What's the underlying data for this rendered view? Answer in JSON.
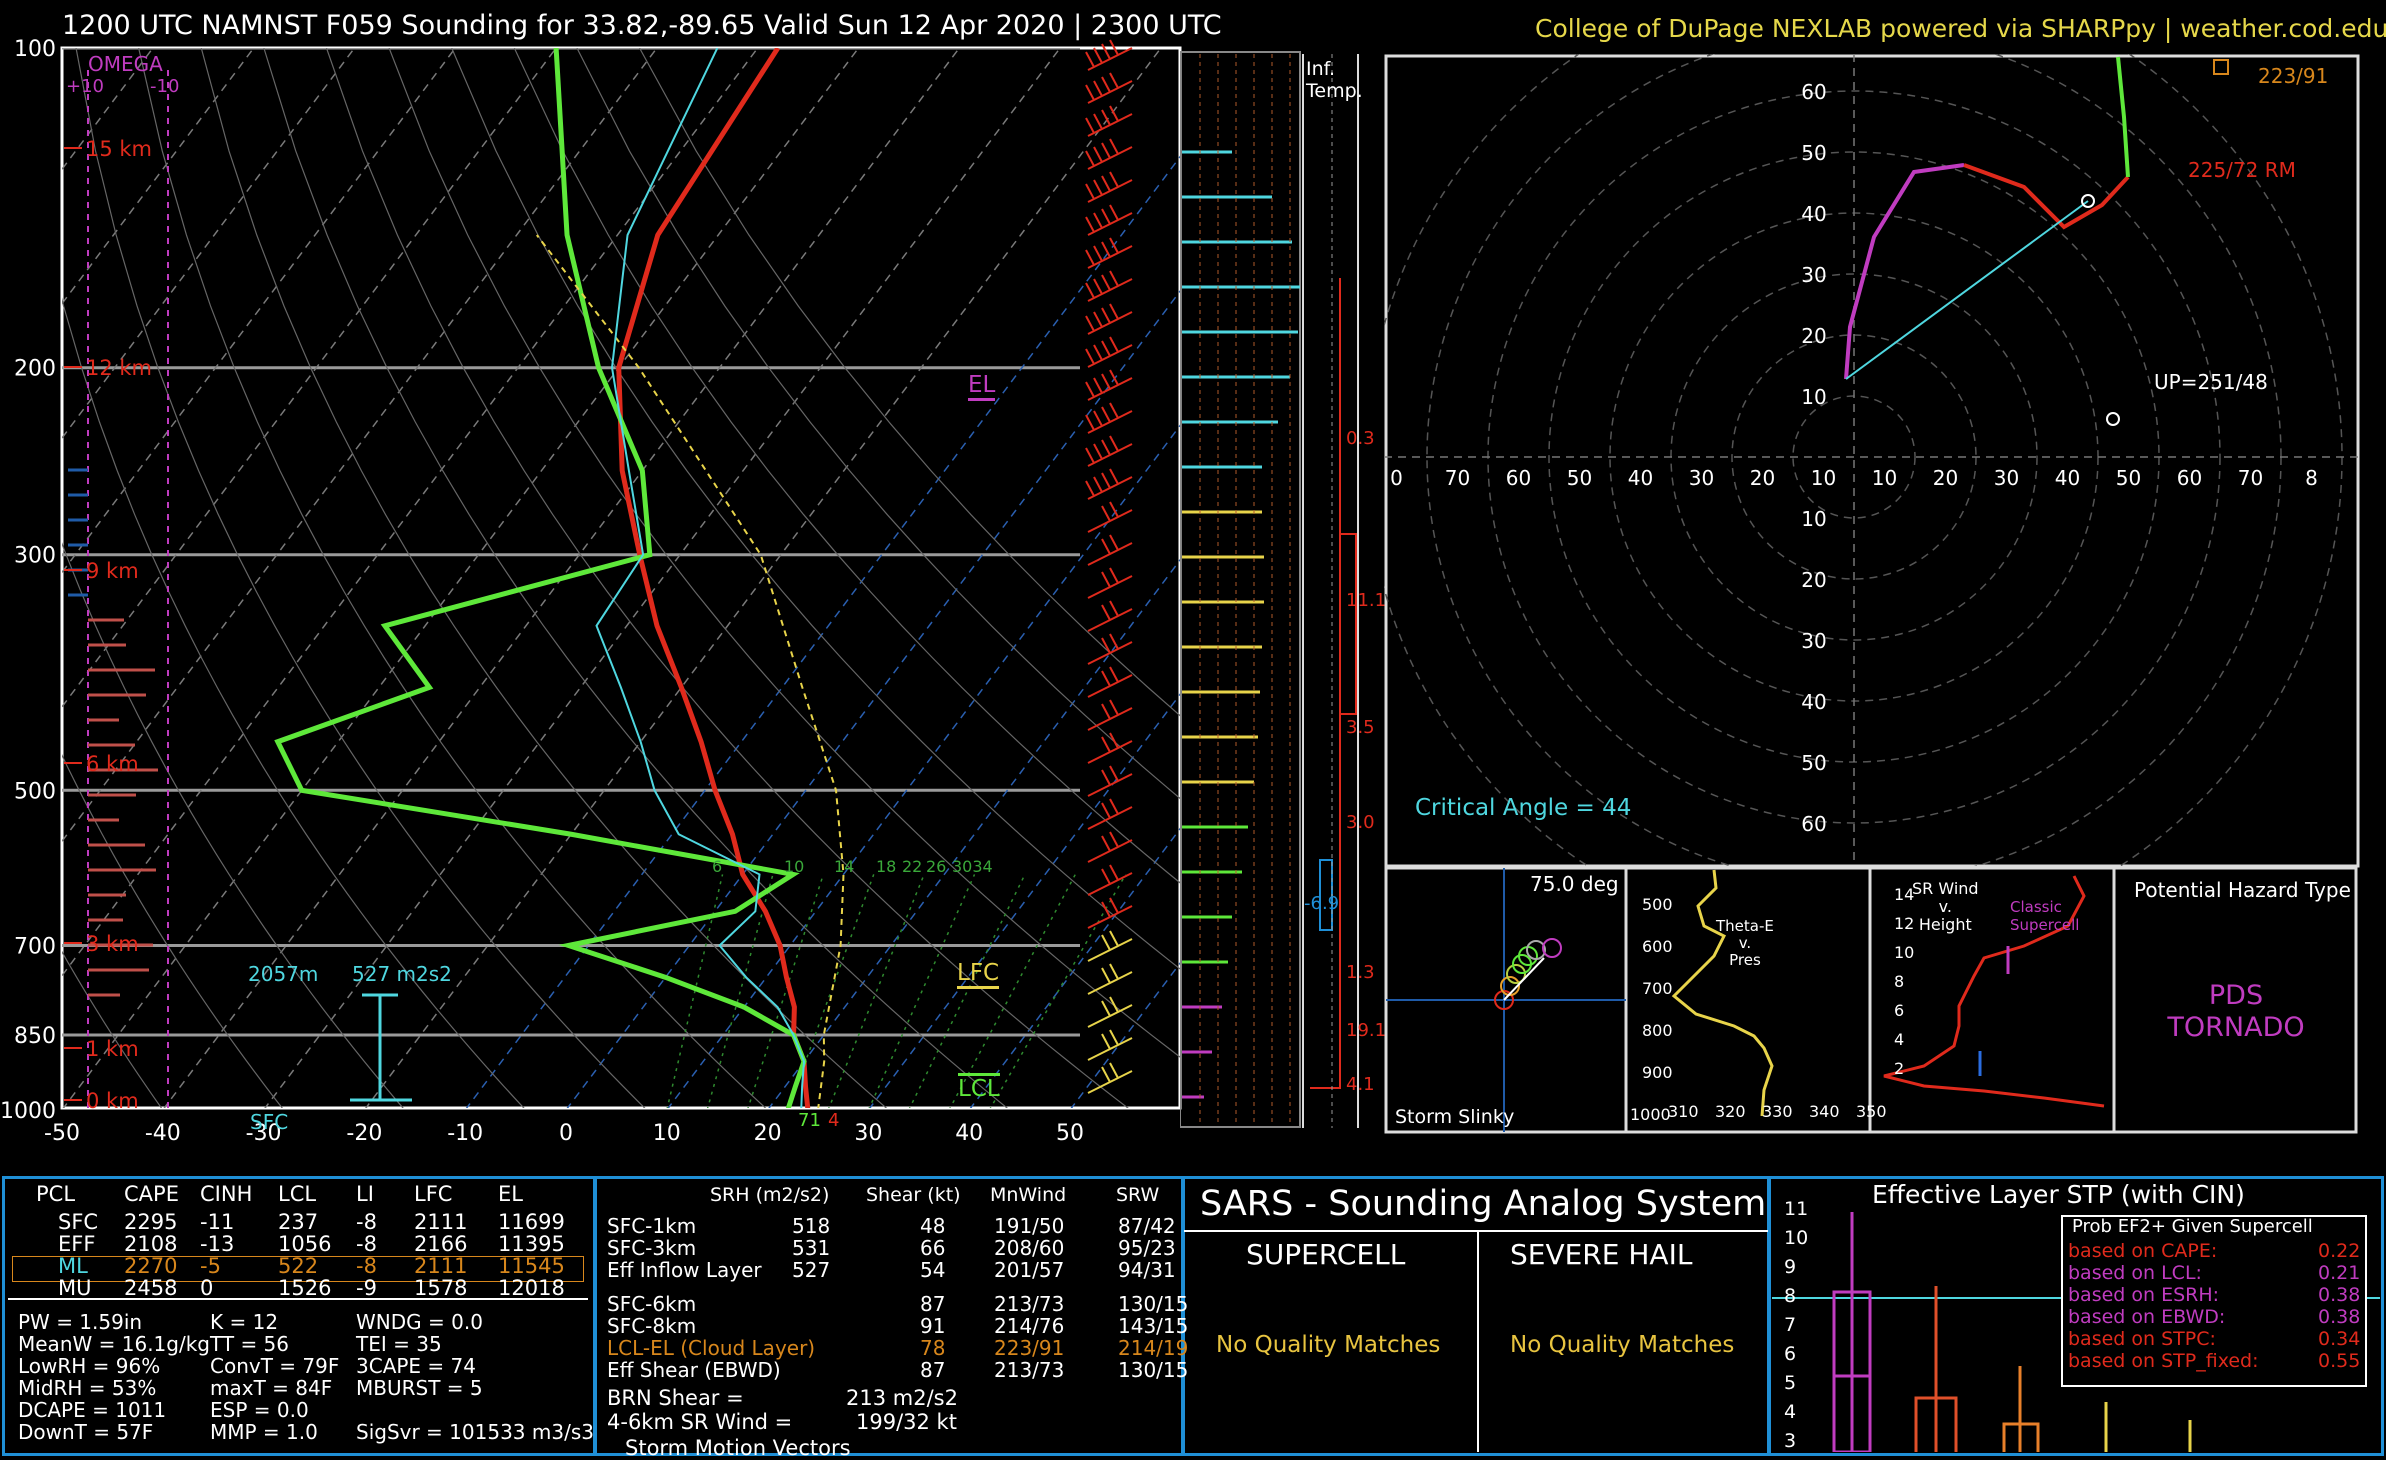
{
  "header": {
    "title": "1200 UTC NAMNST F059 Sounding for 33.82,-89.65 Valid  Sun 12 Apr 2020 | 2300 UTC",
    "credit": "College of DuPage NEXLAB powered via SHARPpy | weather.cod.edu"
  },
  "colors": {
    "temp": "#e02a1c",
    "dew": "#5ee83a",
    "wetbulb": "#4fd7e0",
    "parcel": "#e8d44a",
    "omega": "#c03cc0",
    "grid": "#9a9a9a",
    "accent": "#1f8fd6"
  },
  "chart_data": [
    {
      "type": "line",
      "title": "Skew-T log-P",
      "yscale": "log-pressure",
      "ylim": [
        1000,
        100
      ],
      "xlim": [
        -50,
        50
      ],
      "pressure_ticks": [
        "100",
        "200",
        "300",
        "500",
        "700",
        "850",
        "1000"
      ],
      "temp_ticks": [
        "-50",
        "-40",
        "-30",
        "-20",
        "-10",
        "0",
        "10",
        "20",
        "30",
        "40",
        "50"
      ],
      "height_labels": [
        "15 km",
        "12 km",
        "9 km",
        "6 km",
        "3 km",
        "1 km",
        "0 km"
      ],
      "omega_labels": {
        "title": "OMEGA",
        "left": "+10",
        "right": "-10"
      },
      "markers": {
        "el": "EL",
        "lfc": "LFC",
        "lcl": "LCL",
        "sfc": "SFC",
        "eff_inflow_height": "2057m",
        "eff_inflow_srh": "527 m2s2",
        "sfc_temp": "71",
        "sfc_dew": "4"
      },
      "mixing_ratio_labels": [
        "6",
        "10",
        "14",
        "18",
        "22",
        "26",
        "3034"
      ],
      "series": [
        {
          "name": "Temperature",
          "p": [
            1000,
            950,
            900,
            850,
            800,
            750,
            700,
            650,
            600,
            550,
            500,
            450,
            400,
            350,
            300,
            250,
            200,
            150,
            100
          ],
          "t": [
            24,
            22,
            20,
            17,
            15,
            12,
            9,
            5,
            0,
            -4,
            -9,
            -14,
            -20,
            -27,
            -34,
            -42,
            -50,
            -56,
            -58
          ]
        },
        {
          "name": "Dewpoint",
          "p": [
            1000,
            950,
            900,
            850,
            800,
            750,
            700,
            650,
            600,
            550,
            500,
            450,
            400,
            350,
            300,
            250,
            200,
            150,
            100
          ],
          "t": [
            22,
            21,
            20,
            17,
            10,
            0,
            -12,
            2,
            5,
            -20,
            -50,
            -56,
            -45,
            -54,
            -33,
            -40,
            -52,
            -65,
            -80
          ]
        },
        {
          "name": "Parcel",
          "p": [
            1000,
            900,
            850,
            700,
            600,
            500,
            400,
            300,
            200,
            150
          ],
          "t": [
            25,
            22,
            20,
            15,
            10,
            3,
            -8,
            -22,
            -48,
            -68
          ]
        }
      ]
    },
    {
      "type": "scatter",
      "title": "Hodograph",
      "rings": [
        "10",
        "20",
        "30",
        "40",
        "50",
        "60"
      ],
      "xticks": [
        "0",
        "70",
        "60",
        "50",
        "40",
        "30",
        "20",
        "10",
        "10",
        "20",
        "30",
        "40",
        "50",
        "60",
        "70",
        "8"
      ],
      "yticks_up": [
        "60",
        "50",
        "40",
        "30",
        "20",
        "10"
      ],
      "yticks_down": [
        "10",
        "20",
        "30",
        "40",
        "50",
        "60"
      ],
      "labels": {
        "mean": "223/91",
        "rm": "225/72 RM",
        "up": "UP=251/48",
        "crit": "Critical Angle = 44"
      }
    }
  ],
  "inflection": {
    "title": "Inf.\nTemp.",
    "values": [
      "0.3",
      "11.1",
      "3.5",
      "3.0",
      "-6.9",
      "1.3",
      "19.1",
      "4.1"
    ]
  },
  "slinky": {
    "title": "Storm Slinky",
    "angle": "75.0 deg"
  },
  "thetae": {
    "title": "Theta-E\nv.\nPres",
    "yticks": [
      "500",
      "600",
      "700",
      "800",
      "900",
      "1000"
    ],
    "xticks": [
      "310",
      "320",
      "330",
      "340",
      "350"
    ]
  },
  "srwind": {
    "title": "SR Wind\nv.\nHeight",
    "yticks": [
      "14",
      "12",
      "10",
      "8",
      "6",
      "4",
      "2"
    ],
    "label": "Classic\nSupercell"
  },
  "hazard": {
    "title": "Potential Hazard Type",
    "value": "PDS\nTORNADO"
  },
  "parcels": {
    "headers": [
      "PCL",
      "CAPE",
      "CINH",
      "LCL",
      "LI",
      "LFC",
      "EL"
    ],
    "rows": [
      [
        "SFC",
        "2295",
        "-11",
        "237",
        "-8",
        "2111",
        "11699"
      ],
      [
        "EFF",
        "2108",
        "-13",
        "1056",
        "-8",
        "2166",
        "11395"
      ],
      [
        "ML",
        "2270",
        "-5",
        "522",
        "-8",
        "2111",
        "11545"
      ],
      [
        "MU",
        "2458",
        "0",
        "1526",
        "-9",
        "1578",
        "12018"
      ]
    ]
  },
  "indices": [
    [
      "PW = 1.59in",
      "K = 12",
      "WNDG = 0.0"
    ],
    [
      "MeanW = 16.1g/kg",
      "TT = 56",
      "TEI = 35"
    ],
    [
      "LowRH = 96%",
      "ConvT = 79F",
      "3CAPE = 74"
    ],
    [
      "MidRH = 53%",
      "maxT = 84F",
      "MBURST = 5"
    ],
    [
      "DCAPE = 1011",
      "ESP = 0.0",
      ""
    ],
    [
      "DownT = 57F",
      "MMP = 1.0",
      "SigSvr = 101533 m3/s3"
    ]
  ],
  "kinematics": {
    "headers": [
      "SRH (m2/s2)",
      "Shear (kt)",
      "MnWind",
      "SRW"
    ],
    "rows": [
      [
        "SFC-1km",
        "518",
        "48",
        "191/50",
        "87/42"
      ],
      [
        "SFC-3km",
        "531",
        "66",
        "208/60",
        "95/23"
      ],
      [
        "Eff Inflow Layer",
        "527",
        "54",
        "201/57",
        "94/31"
      ],
      [
        "SFC-6km",
        "",
        "87",
        "213/73",
        "130/15"
      ],
      [
        "SFC-8km",
        "",
        "91",
        "214/76",
        "143/15"
      ],
      [
        "LCL-EL (Cloud Layer)",
        "",
        "78",
        "223/91",
        "214/19"
      ],
      [
        "Eff Shear (EBWD)",
        "",
        "87",
        "213/73",
        "130/15"
      ]
    ],
    "brn_label": "BRN Shear =",
    "brn_value": "213 m2/s2",
    "sr46_label": "4-6km SR Wind =",
    "sr46_value": "199/32 kt",
    "storm_motion": "Storm Motion Vectors"
  },
  "sars": {
    "title": "SARS - Sounding Analog System",
    "col1": "SUPERCELL",
    "col2": "SEVERE HAIL",
    "nomatch": "No Quality Matches"
  },
  "stp": {
    "title": "Effective Layer STP (with CIN)",
    "yticks": [
      "11",
      "10",
      "9",
      "8",
      "7",
      "6",
      "5",
      "4",
      "3"
    ],
    "legend_title": "Prob EF2+ Given Supercell",
    "legend": [
      [
        "based on CAPE:",
        "0.22"
      ],
      [
        "based on LCL:",
        "0.21"
      ],
      [
        "based on ESRH:",
        "0.38"
      ],
      [
        "based on EBWD:",
        "0.38"
      ],
      [
        "based on STPC:",
        "0.34"
      ],
      [
        "based on STP_fixed:",
        "0.55"
      ]
    ]
  }
}
